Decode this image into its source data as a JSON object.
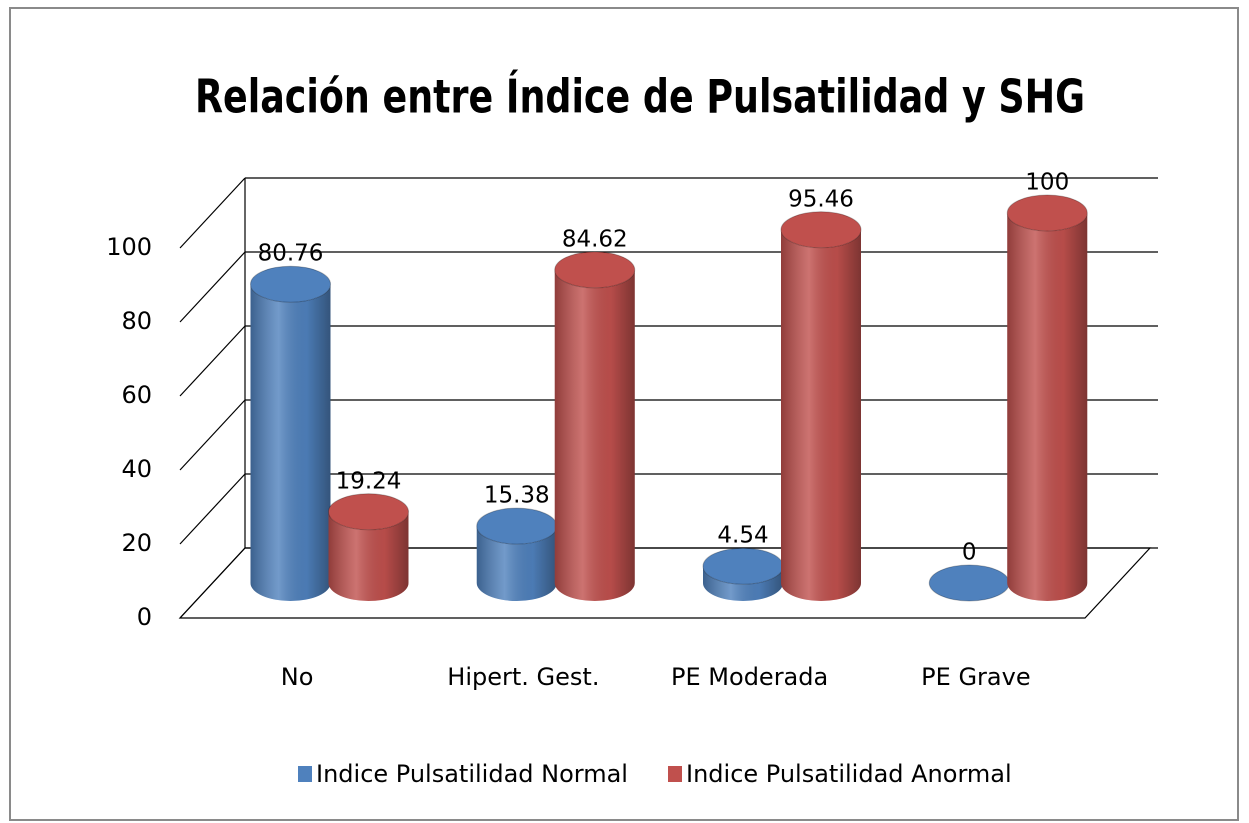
{
  "chart_data": {
    "type": "bar3d",
    "title": "Relación entre Índice de Pulsatilidad y SHG",
    "categories": [
      "No",
      "Hipert. Gest.",
      "PE Moderada",
      "PE Grave"
    ],
    "series": [
      {
        "name": "Indice Pulsatilidad Normal",
        "color": "#4f81bd",
        "values": [
          80.76,
          15.38,
          4.54,
          0
        ]
      },
      {
        "name": "Indice Pulsatilidad Anormal",
        "color": "#c0504d",
        "values": [
          19.24,
          84.62,
          95.46,
          100
        ]
      }
    ],
    "ylim": [
      0,
      100
    ],
    "yticks": [
      0,
      20,
      40,
      60,
      80,
      100
    ],
    "grid": true,
    "legend": "bottom"
  }
}
